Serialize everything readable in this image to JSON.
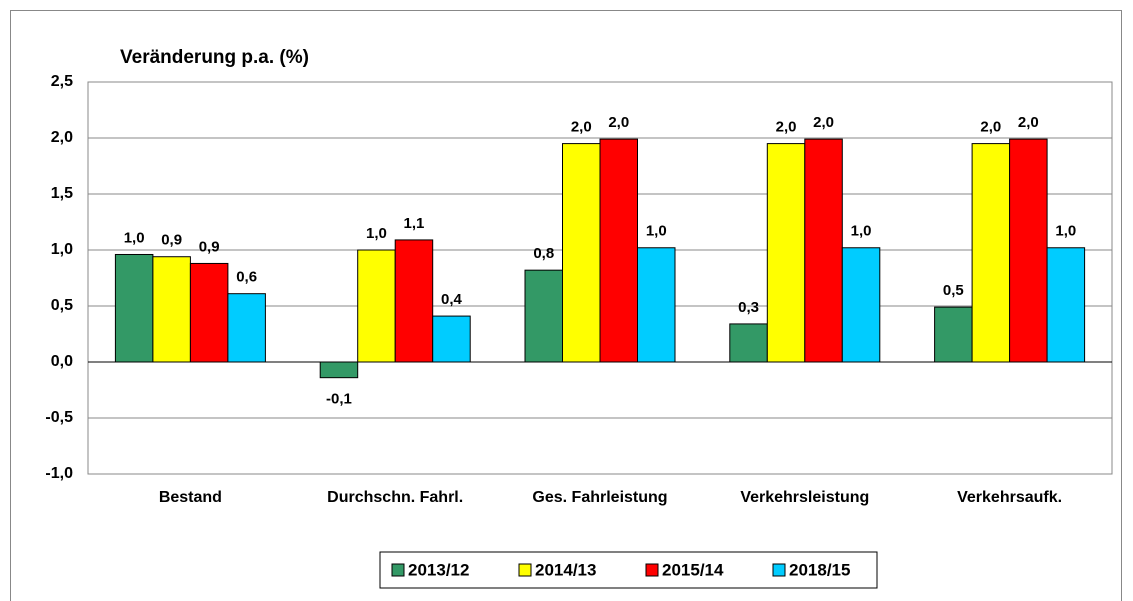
{
  "chart_data": {
    "type": "bar",
    "title": "Veränderung p.a. (%)",
    "categories": [
      "Bestand",
      "Durchschn. Fahrl.",
      "Ges. Fahrleistung",
      "Verkehrsleistung",
      "Verkehrsaufk."
    ],
    "series": [
      {
        "name": "2013/12",
        "color": "#339966",
        "values": [
          0.96,
          -0.14,
          0.82,
          0.34,
          0.49
        ],
        "value_labels": [
          "1,0",
          "-0,1",
          "0,8",
          "0,3",
          "0,5"
        ]
      },
      {
        "name": "2014/13",
        "color": "#ffff00",
        "values": [
          0.94,
          1.0,
          1.95,
          1.95,
          1.95
        ],
        "value_labels": [
          "0,9",
          "1,0",
          "2,0",
          "2,0",
          "2,0"
        ]
      },
      {
        "name": "2015/14",
        "color": "#ff0000",
        "values": [
          0.88,
          1.09,
          1.99,
          1.99,
          1.99
        ],
        "value_labels": [
          "0,9",
          "1,1",
          "2,0",
          "2,0",
          "2,0"
        ]
      },
      {
        "name": "2018/15",
        "color": "#00ccff",
        "values": [
          0.61,
          0.41,
          1.02,
          1.02,
          1.02
        ],
        "value_labels": [
          "0,6",
          "0,4",
          "1,0",
          "1,0",
          "1,0"
        ]
      }
    ],
    "ylim": [
      -1.0,
      2.5
    ],
    "yticks": [
      {
        "value": -1.0,
        "label": "-1,0"
      },
      {
        "value": -0.5,
        "label": "-0,5"
      },
      {
        "value": 0,
        "label": "0,0"
      },
      {
        "value": 0.5,
        "label": "0,5"
      },
      {
        "value": 1.0,
        "label": "1,0"
      },
      {
        "value": 1.5,
        "label": "1,5"
      },
      {
        "value": 2.0,
        "label": "2,0"
      },
      {
        "value": 2.5,
        "label": "2,5"
      }
    ],
    "grid": true,
    "legend": "bottom"
  }
}
